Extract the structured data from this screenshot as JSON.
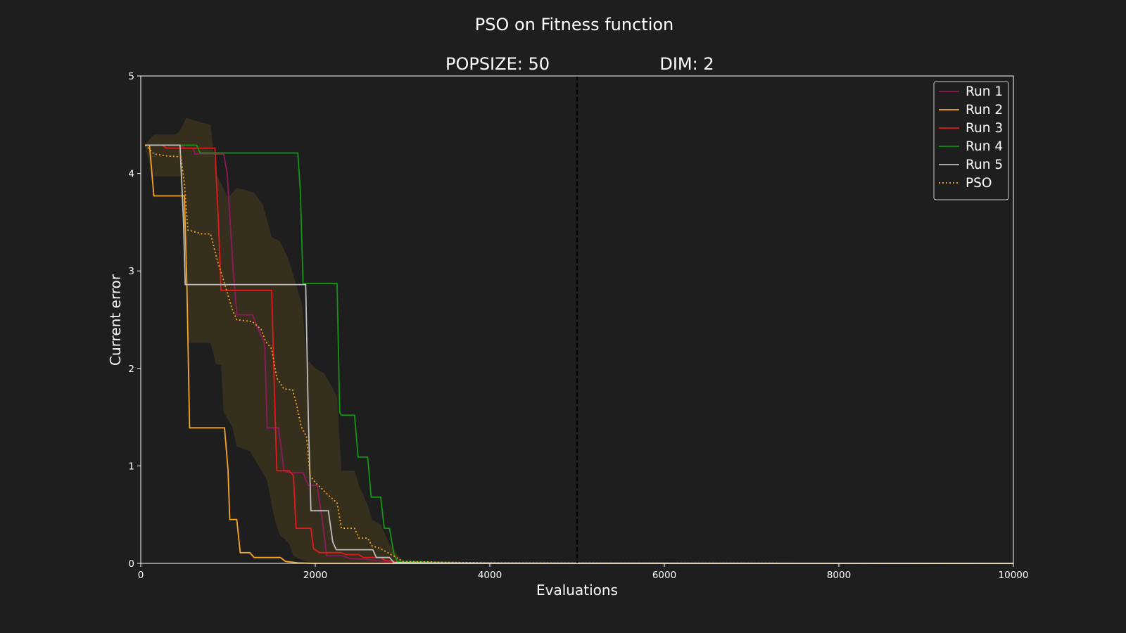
{
  "chart_data": {
    "type": "line",
    "title": "PSO on Fitness function",
    "subtitle_left": "POPSIZE: 50",
    "subtitle_right": "DIM: 2",
    "xlabel": "Evaluations",
    "ylabel": "Current error",
    "xlim": [
      0,
      10000
    ],
    "ylim": [
      0,
      5
    ],
    "xticks": [
      0,
      2000,
      4000,
      6000,
      8000,
      10000
    ],
    "yticks": [
      0,
      1,
      2,
      3,
      4,
      5
    ],
    "grid": false,
    "legend_position": "top-right",
    "reference_line": {
      "x": 5000,
      "style": "dashed",
      "color": "#000000"
    },
    "colors": {
      "background": "#1e1e1e",
      "axes": "#ffffff",
      "band": "#d9a520"
    },
    "series": [
      {
        "name": "Run 1",
        "color": "#8e1a5c",
        "style": "solid",
        "points": [
          [
            50,
            4.29
          ],
          [
            450,
            4.29
          ],
          [
            500,
            4.26
          ],
          [
            600,
            4.26
          ],
          [
            620,
            4.2
          ],
          [
            950,
            4.2
          ],
          [
            990,
            4.0
          ],
          [
            1060,
            3.0
          ],
          [
            1100,
            2.55
          ],
          [
            1280,
            2.55
          ],
          [
            1420,
            2.25
          ],
          [
            1450,
            1.39
          ],
          [
            1580,
            1.39
          ],
          [
            1640,
            0.95
          ],
          [
            1700,
            0.93
          ],
          [
            1860,
            0.93
          ],
          [
            1920,
            0.8
          ],
          [
            2020,
            0.8
          ],
          [
            2080,
            0.45
          ],
          [
            2130,
            0.08
          ],
          [
            2300,
            0.08
          ],
          [
            2400,
            0.05
          ],
          [
            2600,
            0.04
          ],
          [
            2800,
            0.02
          ],
          [
            3000,
            0.01
          ],
          [
            3500,
            0.005
          ],
          [
            4000,
            0.002
          ],
          [
            10000,
            0.0
          ]
        ]
      },
      {
        "name": "Run 2",
        "color": "#f5a623",
        "style": "solid",
        "points": [
          [
            50,
            4.29
          ],
          [
            100,
            4.29
          ],
          [
            150,
            3.77
          ],
          [
            500,
            3.77
          ],
          [
            530,
            2.8
          ],
          [
            560,
            1.39
          ],
          [
            960,
            1.39
          ],
          [
            1000,
            0.96
          ],
          [
            1020,
            0.45
          ],
          [
            1100,
            0.45
          ],
          [
            1140,
            0.11
          ],
          [
            1250,
            0.11
          ],
          [
            1300,
            0.06
          ],
          [
            1600,
            0.06
          ],
          [
            1660,
            0.02
          ],
          [
            1800,
            0.005
          ],
          [
            2000,
            0.0
          ],
          [
            10000,
            0.0
          ]
        ]
      },
      {
        "name": "Run 3",
        "color": "#e41a1a",
        "style": "solid",
        "points": [
          [
            50,
            4.29
          ],
          [
            250,
            4.29
          ],
          [
            290,
            4.26
          ],
          [
            850,
            4.26
          ],
          [
            890,
            3.5
          ],
          [
            920,
            2.8
          ],
          [
            1500,
            2.8
          ],
          [
            1540,
            1.5
          ],
          [
            1560,
            0.95
          ],
          [
            1700,
            0.95
          ],
          [
            1750,
            0.9
          ],
          [
            1780,
            0.36
          ],
          [
            1950,
            0.36
          ],
          [
            1980,
            0.15
          ],
          [
            2050,
            0.11
          ],
          [
            2300,
            0.11
          ],
          [
            2350,
            0.09
          ],
          [
            2500,
            0.09
          ],
          [
            2550,
            0.06
          ],
          [
            2750,
            0.06
          ],
          [
            2800,
            0.03
          ],
          [
            3000,
            0.01
          ],
          [
            3500,
            0.005
          ],
          [
            4000,
            0.002
          ],
          [
            10000,
            0.0
          ]
        ]
      },
      {
        "name": "Run 4",
        "color": "#149614",
        "style": "solid",
        "points": [
          [
            50,
            4.29
          ],
          [
            640,
            4.29
          ],
          [
            680,
            4.21
          ],
          [
            1800,
            4.21
          ],
          [
            1830,
            3.8
          ],
          [
            1860,
            2.87
          ],
          [
            2250,
            2.87
          ],
          [
            2280,
            1.55
          ],
          [
            2300,
            1.52
          ],
          [
            2450,
            1.52
          ],
          [
            2490,
            1.09
          ],
          [
            2600,
            1.09
          ],
          [
            2640,
            0.68
          ],
          [
            2750,
            0.68
          ],
          [
            2790,
            0.36
          ],
          [
            2850,
            0.36
          ],
          [
            2900,
            0.1
          ],
          [
            2940,
            0.02
          ],
          [
            3400,
            0.01
          ],
          [
            3800,
            0.005
          ],
          [
            4200,
            0.002
          ],
          [
            10000,
            0.0
          ]
        ]
      },
      {
        "name": "Run 5",
        "color": "#bdbdbd",
        "style": "solid",
        "points": [
          [
            50,
            4.29
          ],
          [
            450,
            4.29
          ],
          [
            490,
            3.5
          ],
          [
            510,
            2.86
          ],
          [
            1890,
            2.86
          ],
          [
            1920,
            1.5
          ],
          [
            1950,
            0.54
          ],
          [
            2150,
            0.54
          ],
          [
            2200,
            0.22
          ],
          [
            2240,
            0.14
          ],
          [
            2660,
            0.14
          ],
          [
            2700,
            0.06
          ],
          [
            2850,
            0.06
          ],
          [
            2900,
            0.01
          ],
          [
            3200,
            0.005
          ],
          [
            3600,
            0.002
          ],
          [
            10000,
            0.0
          ]
        ]
      },
      {
        "name": "PSO",
        "color": "#f5a623",
        "style": "dotted",
        "points": [
          [
            50,
            4.29
          ],
          [
            100,
            4.25
          ],
          [
            150,
            4.2
          ],
          [
            300,
            4.18
          ],
          [
            460,
            4.17
          ],
          [
            500,
            3.9
          ],
          [
            540,
            3.42
          ],
          [
            700,
            3.38
          ],
          [
            800,
            3.38
          ],
          [
            880,
            3.1
          ],
          [
            950,
            2.9
          ],
          [
            1000,
            2.75
          ],
          [
            1050,
            2.6
          ],
          [
            1100,
            2.5
          ],
          [
            1280,
            2.48
          ],
          [
            1380,
            2.4
          ],
          [
            1430,
            2.28
          ],
          [
            1500,
            2.2
          ],
          [
            1560,
            1.9
          ],
          [
            1640,
            1.79
          ],
          [
            1740,
            1.78
          ],
          [
            1780,
            1.65
          ],
          [
            1840,
            1.4
          ],
          [
            1900,
            1.3
          ],
          [
            1940,
            0.9
          ],
          [
            2000,
            0.83
          ],
          [
            2150,
            0.7
          ],
          [
            2250,
            0.62
          ],
          [
            2300,
            0.36
          ],
          [
            2450,
            0.36
          ],
          [
            2500,
            0.26
          ],
          [
            2600,
            0.26
          ],
          [
            2650,
            0.18
          ],
          [
            2750,
            0.15
          ],
          [
            2850,
            0.1
          ],
          [
            2950,
            0.05
          ],
          [
            3000,
            0.02
          ],
          [
            3500,
            0.01
          ],
          [
            4000,
            0.005
          ],
          [
            5000,
            0.002
          ],
          [
            10000,
            0.0
          ]
        ]
      }
    ],
    "band": {
      "upper": [
        [
          50,
          4.29
        ],
        [
          100,
          4.35
        ],
        [
          150,
          4.4
        ],
        [
          400,
          4.4
        ],
        [
          460,
          4.45
        ],
        [
          520,
          4.57
        ],
        [
          600,
          4.55
        ],
        [
          700,
          4.52
        ],
        [
          800,
          4.5
        ],
        [
          860,
          4.0
        ],
        [
          920,
          3.9
        ],
        [
          1000,
          3.75
        ],
        [
          1100,
          3.85
        ],
        [
          1200,
          3.83
        ],
        [
          1300,
          3.8
        ],
        [
          1400,
          3.68
        ],
        [
          1500,
          3.35
        ],
        [
          1600,
          3.3
        ],
        [
          1700,
          3.1
        ],
        [
          1800,
          2.8
        ],
        [
          1850,
          2.65
        ],
        [
          1900,
          2.1
        ],
        [
          2000,
          2.0
        ],
        [
          2100,
          1.95
        ],
        [
          2200,
          1.8
        ],
        [
          2250,
          1.7
        ],
        [
          2300,
          0.95
        ],
        [
          2450,
          0.95
        ],
        [
          2500,
          0.8
        ],
        [
          2600,
          0.6
        ],
        [
          2650,
          0.45
        ],
        [
          2750,
          0.4
        ],
        [
          2850,
          0.2
        ],
        [
          2950,
          0.08
        ],
        [
          3000,
          0.03
        ],
        [
          3500,
          0.02
        ],
        [
          4000,
          0.01
        ],
        [
          5000,
          0.004
        ],
        [
          10000,
          0.0
        ]
      ],
      "lower": [
        [
          50,
          4.29
        ],
        [
          100,
          4.1
        ],
        [
          150,
          3.97
        ],
        [
          450,
          3.97
        ],
        [
          500,
          3.4
        ],
        [
          540,
          2.26
        ],
        [
          800,
          2.26
        ],
        [
          860,
          2.05
        ],
        [
          920,
          2.03
        ],
        [
          950,
          1.55
        ],
        [
          1050,
          1.4
        ],
        [
          1100,
          1.2
        ],
        [
          1250,
          1.15
        ],
        [
          1350,
          1.0
        ],
        [
          1450,
          0.85
        ],
        [
          1500,
          0.6
        ],
        [
          1550,
          0.4
        ],
        [
          1600,
          0.28
        ],
        [
          1650,
          0.25
        ],
        [
          1700,
          0.2
        ],
        [
          1750,
          0.08
        ],
        [
          1800,
          0.05
        ],
        [
          1900,
          0.02
        ],
        [
          2000,
          0.0
        ],
        [
          10000,
          0.0
        ]
      ]
    }
  }
}
